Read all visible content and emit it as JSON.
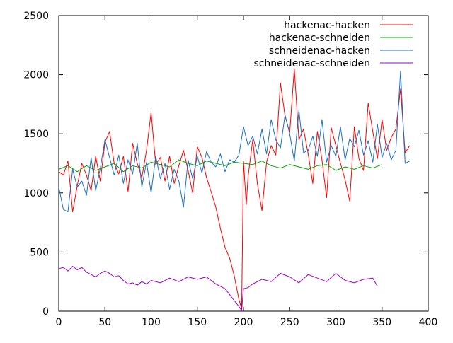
{
  "chart_data": {
    "type": "line",
    "title": "",
    "xlabel": "",
    "ylabel": "",
    "xlim": [
      0,
      400
    ],
    "ylim": [
      0,
      2500
    ],
    "x_ticks": [
      0,
      50,
      100,
      150,
      200,
      250,
      300,
      350,
      400
    ],
    "y_ticks": [
      0,
      500,
      1000,
      1500,
      2000,
      2500
    ],
    "grid": false,
    "legend_position": "top-right",
    "series": [
      {
        "name": "hackenac-hacken",
        "color": "#ff0000",
        "x": [
          0,
          5,
          10,
          15,
          20,
          25,
          30,
          35,
          40,
          45,
          50,
          55,
          60,
          65,
          70,
          75,
          80,
          85,
          90,
          95,
          100,
          105,
          110,
          115,
          120,
          125,
          130,
          135,
          140,
          145,
          150,
          155,
          160,
          165,
          170,
          175,
          180,
          185,
          190,
          195,
          198,
          200,
          203,
          205,
          210,
          215,
          220,
          225,
          230,
          235,
          240,
          245,
          250,
          255,
          260,
          265,
          270,
          275,
          280,
          285,
          290,
          295,
          300,
          305,
          310,
          315,
          320,
          325,
          330,
          335,
          340,
          345,
          350,
          355,
          360,
          365,
          370,
          375,
          380
        ],
        "values": [
          1180,
          1150,
          1270,
          840,
          1060,
          1250,
          1150,
          1020,
          1310,
          1100,
          1430,
          1520,
          1250,
          1160,
          1310,
          1010,
          1420,
          1250,
          1130,
          1360,
          1680,
          1240,
          1300,
          1100,
          1310,
          1080,
          1230,
          1360,
          1190,
          1000,
          1390,
          1300,
          1130,
          1010,
          880,
          700,
          540,
          450,
          300,
          100,
          20,
          1270,
          900,
          1140,
          1450,
          1080,
          850,
          1260,
          1400,
          1320,
          1930,
          1650,
          1510,
          2050,
          1450,
          1540,
          1330,
          1080,
          1520,
          1280,
          960,
          1550,
          1400,
          1250,
          1110,
          930,
          1560,
          1290,
          1190,
          1760,
          1520,
          1290,
          1620,
          1360,
          1470,
          1540,
          1880,
          1340,
          1400
        ]
      },
      {
        "name": "hackenac-schneiden",
        "color": "#00a000",
        "x": [
          0,
          10,
          20,
          30,
          40,
          50,
          60,
          70,
          80,
          90,
          100,
          110,
          120,
          130,
          140,
          150,
          160,
          170,
          180,
          190,
          200,
          210,
          220,
          230,
          240,
          250,
          260,
          270,
          280,
          290,
          300,
          310,
          320,
          330,
          340,
          350
        ],
        "values": [
          1200,
          1230,
          1180,
          1230,
          1190,
          1220,
          1250,
          1180,
          1230,
          1210,
          1260,
          1240,
          1220,
          1280,
          1250,
          1230,
          1270,
          1250,
          1230,
          1260,
          1250,
          1240,
          1270,
          1230,
          1210,
          1240,
          1220,
          1200,
          1230,
          1240,
          1190,
          1220,
          1200,
          1230,
          1210,
          1240
        ]
      },
      {
        "name": "schneidenac-hacken",
        "color": "#1a70c8",
        "x": [
          0,
          5,
          10,
          15,
          20,
          25,
          30,
          35,
          40,
          45,
          50,
          55,
          60,
          65,
          70,
          75,
          80,
          85,
          90,
          95,
          100,
          105,
          110,
          115,
          120,
          125,
          130,
          135,
          140,
          145,
          150,
          155,
          160,
          165,
          170,
          175,
          180,
          185,
          190,
          195,
          200,
          205,
          210,
          215,
          220,
          225,
          230,
          235,
          240,
          245,
          250,
          255,
          260,
          265,
          270,
          275,
          280,
          285,
          290,
          295,
          300,
          305,
          310,
          315,
          320,
          325,
          330,
          335,
          340,
          345,
          350,
          355,
          360,
          365,
          370,
          375,
          380
        ],
        "values": [
          1050,
          860,
          840,
          1200,
          1050,
          1100,
          980,
          1300,
          1020,
          1210,
          1450,
          1300,
          1150,
          1320,
          1080,
          1280,
          1160,
          1420,
          1050,
          1260,
          1000,
          1310,
          1120,
          1250,
          1030,
          1200,
          1100,
          880,
          1280,
          1120,
          1310,
          1170,
          1350,
          1260,
          1220,
          1330,
          1180,
          1280,
          1260,
          1320,
          1560,
          1400,
          1480,
          1330,
          1540,
          1330,
          1620,
          1450,
          1380,
          1660,
          1500,
          1270,
          1700,
          1340,
          1360,
          1480,
          1310,
          1620,
          1260,
          1400,
          1310,
          1560,
          1280,
          1460,
          1390,
          1530,
          1320,
          1440,
          1260,
          1580,
          1300,
          1420,
          1280,
          1360,
          2030,
          1250,
          1270
        ]
      },
      {
        "name": "schneidenac-schneiden",
        "color": "#a000c8",
        "x": [
          0,
          5,
          10,
          15,
          20,
          25,
          30,
          35,
          40,
          45,
          50,
          55,
          60,
          65,
          70,
          75,
          80,
          85,
          90,
          95,
          100,
          110,
          120,
          130,
          140,
          150,
          160,
          170,
          180,
          185,
          190,
          195,
          198,
          200,
          205,
          210,
          220,
          230,
          240,
          250,
          260,
          270,
          280,
          290,
          300,
          310,
          320,
          330,
          340,
          345
        ],
        "values": [
          360,
          370,
          340,
          380,
          350,
          370,
          330,
          310,
          290,
          320,
          340,
          320,
          290,
          300,
          260,
          230,
          240,
          220,
          250,
          230,
          260,
          240,
          280,
          250,
          290,
          270,
          290,
          230,
          190,
          140,
          90,
          40,
          5,
          190,
          200,
          230,
          270,
          250,
          320,
          290,
          240,
          310,
          280,
          250,
          320,
          260,
          240,
          270,
          280,
          210
        ]
      }
    ]
  }
}
